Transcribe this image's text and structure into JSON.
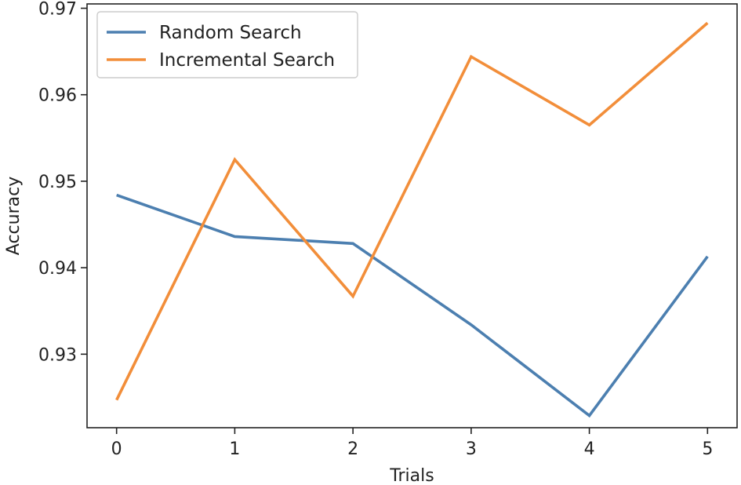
{
  "chart_data": {
    "type": "line",
    "xlabel": "Trials",
    "ylabel": "Accuracy",
    "x": [
      0,
      1,
      2,
      3,
      4,
      5
    ],
    "xticks": [
      "0",
      "1",
      "2",
      "3",
      "4",
      "5"
    ],
    "yticks": [
      0.93,
      0.94,
      0.95,
      0.96,
      0.97
    ],
    "ytick_labels": [
      "0.93",
      "0.94",
      "0.95",
      "0.96",
      "0.97"
    ],
    "xlim": [
      -0.25,
      5.25
    ],
    "ylim": [
      0.9215,
      0.9705
    ],
    "grid": false,
    "legend_position": "top-left",
    "series": [
      {
        "name": "Random Search",
        "color": "#4c7fb0",
        "values": [
          0.9484,
          0.9436,
          0.9428,
          0.9334,
          0.9229,
          0.9413
        ]
      },
      {
        "name": "Incremental Search",
        "color": "#f28e3a",
        "values": [
          0.9247,
          0.9525,
          0.9367,
          0.9644,
          0.9565,
          0.9683
        ]
      }
    ]
  }
}
